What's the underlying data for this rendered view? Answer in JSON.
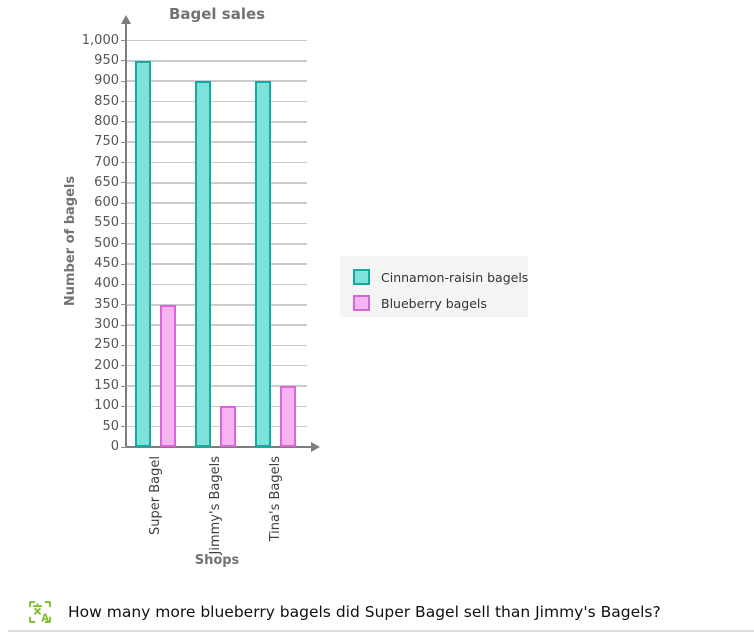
{
  "chart_data": {
    "type": "bar",
    "title": "Bagel sales",
    "xlabel": "Shops",
    "ylabel": "Number of bagels",
    "categories": [
      "Super Bagel",
      "Jimmy's Bagels",
      "Tina's Bagels"
    ],
    "series": [
      {
        "name": "Cinnamon-raisin bagels",
        "values": [
          950,
          900,
          900
        ],
        "fill": "#7FE2DA",
        "border": "#12ABA4"
      },
      {
        "name": "Blueberry bagels",
        "values": [
          350,
          100,
          150
        ],
        "fill": "#F8B3F2",
        "border": "#D767D7"
      }
    ],
    "ylim": [
      0,
      1000
    ],
    "ytick_step": 50,
    "ytick_labels": [
      "0",
      "50",
      "100",
      "150",
      "200",
      "250",
      "300",
      "350",
      "400",
      "450",
      "500",
      "550",
      "600",
      "650",
      "700",
      "750",
      "800",
      "850",
      "900",
      "950",
      "1,000"
    ],
    "grid": true,
    "legend_position": "right-middle",
    "bar_orientation": "vertical",
    "x_tick_label_rotation_deg": -90
  },
  "question": {
    "text": "How many more blueberry bagels did Super Bagel sell than Jimmy's Bagels?",
    "icon": "translate-icon",
    "icon_color": "#7CBF2B"
  },
  "colors": {
    "axis": "#7d7d7d",
    "gridline": "#cbcbcb",
    "title_text": "#737373",
    "tick_text": "#555555",
    "category_text": "#3f3f3f",
    "legend_background": "#f4f4f4",
    "question_text": "#111111",
    "background": "#ffffff"
  }
}
